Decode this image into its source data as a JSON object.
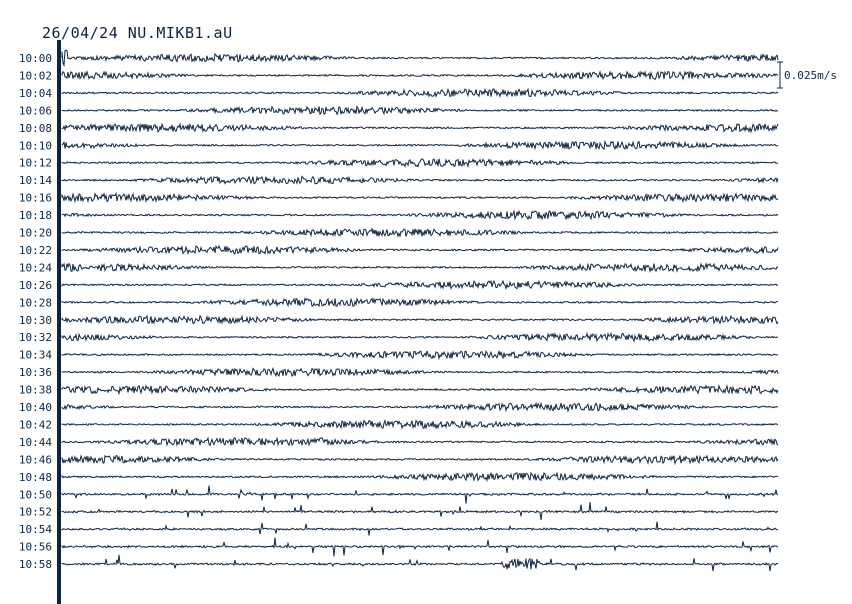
{
  "title": "26/04/24 NU.MIKB1.aU",
  "colors": {
    "trace": "#0d2640",
    "background": "#ffffff"
  },
  "chart_data": {
    "type": "line",
    "title": "26/04/24 NU.MIKB1.aU",
    "row_labels": [
      "10:00",
      "10:02",
      "10:04",
      "10:06",
      "10:08",
      "10:10",
      "10:12",
      "10:14",
      "10:16",
      "10:18",
      "10:20",
      "10:22",
      "10:24",
      "10:26",
      "10:28",
      "10:30",
      "10:32",
      "10:34",
      "10:36",
      "10:38",
      "10:40",
      "10:42",
      "10:44",
      "10:46",
      "10:48",
      "10:50",
      "10:52",
      "10:54",
      "10:56",
      "10:58"
    ],
    "scale_label": "0.025m/s",
    "minutes_per_row": 2,
    "grid": false
  }
}
